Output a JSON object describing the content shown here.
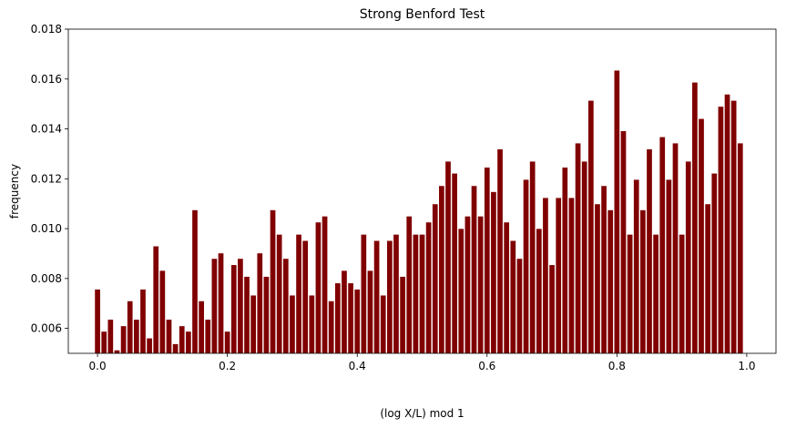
{
  "chart_data": {
    "type": "bar",
    "title": "Strong Benford Test",
    "xlabel": "(log X/L) mod 1",
    "ylabel": "frequency",
    "xlim": [
      -0.045,
      1.045
    ],
    "ylim": [
      0.005,
      0.018
    ],
    "xticks": [
      "0.0",
      "0.2",
      "0.4",
      "0.6",
      "0.8",
      "1.0"
    ],
    "yticks": [
      "0.006",
      "0.008",
      "0.010",
      "0.012",
      "0.014",
      "0.016",
      "0.018"
    ],
    "bar_color": "#800000",
    "bin_width": 0.01,
    "grid": false,
    "legend": "none",
    "x": [
      0.0,
      0.01,
      0.02,
      0.03,
      0.04,
      0.05,
      0.06,
      0.07,
      0.08,
      0.09,
      0.1,
      0.11,
      0.12,
      0.13,
      0.14,
      0.15,
      0.16,
      0.17,
      0.18,
      0.19,
      0.2,
      0.21,
      0.22,
      0.23,
      0.24,
      0.25,
      0.26,
      0.27,
      0.28,
      0.29,
      0.3,
      0.31,
      0.32,
      0.33,
      0.34,
      0.35,
      0.36,
      0.37,
      0.38,
      0.39,
      0.4,
      0.41,
      0.42,
      0.43,
      0.44,
      0.45,
      0.46,
      0.47,
      0.48,
      0.49,
      0.5,
      0.51,
      0.52,
      0.53,
      0.54,
      0.55,
      0.56,
      0.57,
      0.58,
      0.59,
      0.6,
      0.61,
      0.62,
      0.63,
      0.64,
      0.65,
      0.66,
      0.67,
      0.68,
      0.69,
      0.7,
      0.71,
      0.72,
      0.73,
      0.74,
      0.75,
      0.76,
      0.77,
      0.78,
      0.79,
      0.8,
      0.81,
      0.82,
      0.83,
      0.84,
      0.85,
      0.86,
      0.87,
      0.88,
      0.89,
      0.9,
      0.91,
      0.92,
      0.93,
      0.94,
      0.95,
      0.96,
      0.97,
      0.98,
      0.99
    ],
    "values": [
      0.00756,
      0.00587,
      0.00635,
      0.00512,
      0.00609,
      0.00709,
      0.00635,
      0.00756,
      0.0056,
      0.00929,
      0.00831,
      0.00635,
      0.00537,
      0.00609,
      0.00587,
      0.01074,
      0.00709,
      0.00635,
      0.00879,
      0.00901,
      0.00587,
      0.00854,
      0.00879,
      0.00807,
      0.00732,
      0.00901,
      0.00807,
      0.01074,
      0.00976,
      0.00879,
      0.00732,
      0.00976,
      0.00951,
      0.00732,
      0.01025,
      0.01049,
      0.00709,
      0.00781,
      0.00831,
      0.00781,
      0.00756,
      0.00976,
      0.00831,
      0.00951,
      0.00732,
      0.00951,
      0.00976,
      0.00807,
      0.01049,
      0.00976,
      0.00976,
      0.01025,
      0.01098,
      0.01171,
      0.01269,
      0.01221,
      0.00999,
      0.01049,
      0.01171,
      0.01049,
      0.01245,
      0.01147,
      0.01318,
      0.01025,
      0.00951,
      0.00879,
      0.01196,
      0.01269,
      0.00999,
      0.01123,
      0.00854,
      0.01123,
      0.01245,
      0.01123,
      0.01342,
      0.01269,
      0.01513,
      0.01098,
      0.01171,
      0.01074,
      0.01634,
      0.01391,
      0.00976,
      0.01196,
      0.01074,
      0.01318,
      0.00976,
      0.01367,
      0.01196,
      0.01342,
      0.00976,
      0.01269,
      0.01586,
      0.0144,
      0.01098,
      0.01221,
      0.01489,
      0.01538,
      0.01513,
      0.01342
    ]
  }
}
